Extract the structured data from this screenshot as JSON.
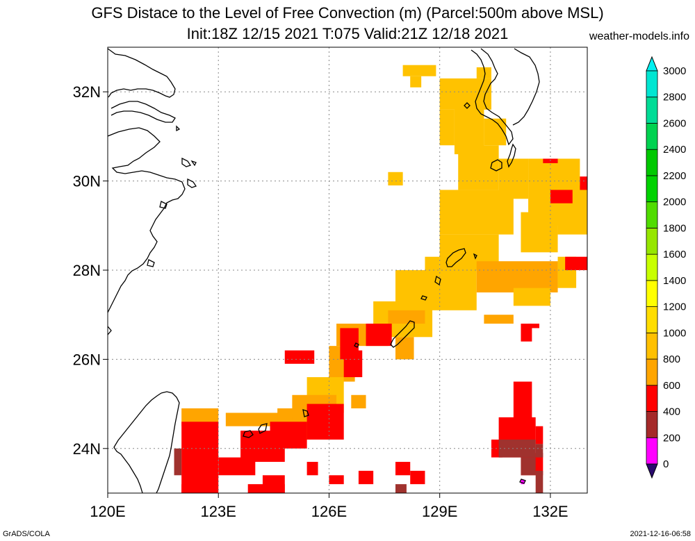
{
  "title": {
    "line1": "GFS Distace to the Level of Free Convection (m) (Parcel:500m above MSL)",
    "line2": "Init:18Z 12/15 2021 T:075 Valid:21Z 12/18 2021",
    "source": "weather-models.info"
  },
  "footer": {
    "left": "GrADS/COLA",
    "right": "2021-12-16-06:58"
  },
  "map": {
    "lon_range": [
      120,
      133
    ],
    "lat_range": [
      23,
      33
    ],
    "lon_ticks": [
      {
        "value": 120,
        "label": "120E"
      },
      {
        "value": 123,
        "label": "123E"
      },
      {
        "value": 126,
        "label": "126E"
      },
      {
        "value": 129,
        "label": "129E"
      },
      {
        "value": 132,
        "label": "132E"
      }
    ],
    "lat_ticks": [
      {
        "value": 24,
        "label": "24N"
      },
      {
        "value": 26,
        "label": "26N"
      },
      {
        "value": 28,
        "label": "28N"
      },
      {
        "value": 30,
        "label": "30N"
      },
      {
        "value": 32,
        "label": "32N"
      }
    ],
    "grid": true,
    "coastline_color": "#000000"
  },
  "colorbar": {
    "levels": [
      {
        "value": 0,
        "label": "0",
        "color": "#3c0a8c"
      },
      {
        "value": 200,
        "label": "200",
        "color": "#ff00ff"
      },
      {
        "value": 400,
        "label": "400",
        "color": "#a52a2a"
      },
      {
        "value": 600,
        "label": "600",
        "color": "#ff0000"
      },
      {
        "value": 800,
        "label": "800",
        "color": "#ffa500"
      },
      {
        "value": 1000,
        "label": "1000",
        "color": "#ffc000"
      },
      {
        "value": 1200,
        "label": "1200",
        "color": "#ffdd00"
      },
      {
        "value": 1400,
        "label": "1400",
        "color": "#ffff00"
      },
      {
        "value": 1600,
        "label": "1600",
        "color": "#c8ff00"
      },
      {
        "value": 1800,
        "label": "1800",
        "color": "#96e600"
      },
      {
        "value": 2000,
        "label": "2000",
        "color": "#50dc00"
      },
      {
        "value": 2200,
        "label": "2200",
        "color": "#00d200"
      },
      {
        "value": 2400,
        "label": "2400",
        "color": "#00c800"
      },
      {
        "value": 2600,
        "label": "2600",
        "color": "#00d250"
      },
      {
        "value": 2800,
        "label": "2800",
        "color": "#00dc96"
      },
      {
        "value": 3000,
        "label": "3000",
        "color": "#00e6d2"
      }
    ],
    "top_arrow_color": "#00f0f0",
    "bottom_arrow_color": "#2a0a6e"
  },
  "colors": {
    "brown": "#a0322e",
    "red": "#ff0000",
    "orange": "#ffa500",
    "yellow_orange": "#ffc200",
    "magenta": "#ff00ff"
  }
}
